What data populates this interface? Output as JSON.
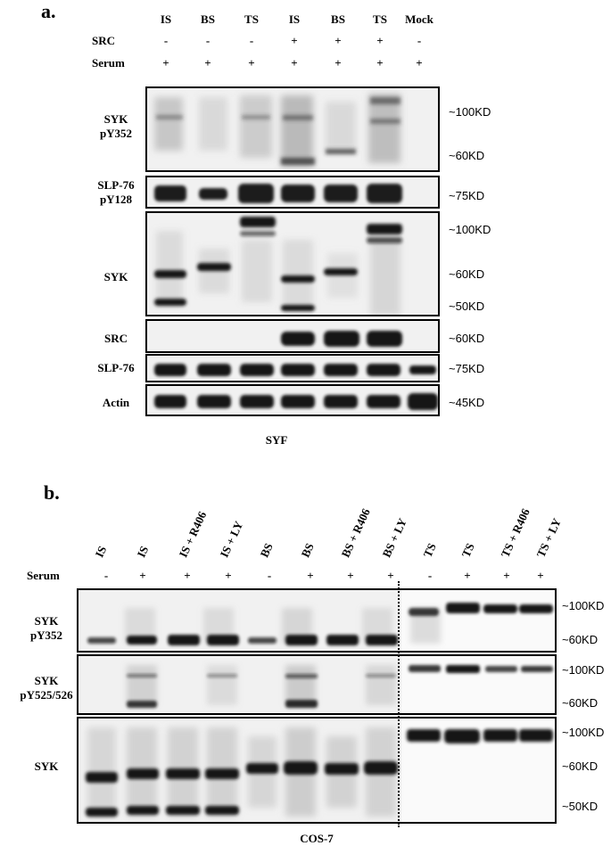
{
  "panel_a": {
    "letter": "a.",
    "lanes": [
      "IS",
      "BS",
      "TS",
      "IS",
      "BS",
      "TS",
      "Mock"
    ],
    "conditions": [
      {
        "label": "SRC",
        "values": [
          "-",
          "-",
          "-",
          "+",
          "+",
          "+",
          "-"
        ]
      },
      {
        "label": "Serum",
        "values": [
          "+",
          "+",
          "+",
          "+",
          "+",
          "+",
          "+"
        ]
      }
    ],
    "blots": [
      {
        "label_lines": [
          "SYK",
          "pY352"
        ],
        "markers": [
          "~100KD",
          "~60KD"
        ]
      },
      {
        "label_lines": [
          "SLP-76",
          "pY128"
        ],
        "markers": [
          "~75KD"
        ]
      },
      {
        "label_lines": [
          "SYK"
        ],
        "markers": [
          "~100KD",
          "~60KD",
          "~50KD"
        ]
      },
      {
        "label_lines": [
          "SRC"
        ],
        "markers": [
          "~60KD"
        ]
      },
      {
        "label_lines": [
          "SLP-76"
        ],
        "markers": [
          "~75KD"
        ]
      },
      {
        "label_lines": [
          "Actin"
        ],
        "markers": [
          "~45KD"
        ]
      }
    ],
    "caption": "SYF"
  },
  "panel_b": {
    "letter": "b.",
    "lanes": [
      "IS",
      "IS",
      "IS + R406",
      "IS + LY",
      "BS",
      "BS",
      "BS + R406",
      "BS + LY",
      "TS",
      "TS",
      "TS + R406",
      "TS + LY"
    ],
    "serum_label": "Serum",
    "serum_values": [
      "-",
      "+",
      "+",
      "+",
      "-",
      "+",
      "+",
      "+",
      "-",
      "+",
      "+",
      "+"
    ],
    "blots": [
      {
        "label_lines": [
          "SYK",
          "pY352"
        ],
        "markers": [
          "~100KD",
          "~60KD"
        ]
      },
      {
        "label_lines": [
          "SYK",
          "pY525/526"
        ],
        "markers": [
          "~100KD",
          "~60KD"
        ]
      },
      {
        "label_lines": [
          "SYK"
        ],
        "markers": [
          "~100KD",
          "~60KD",
          "~50KD"
        ]
      }
    ],
    "caption": "COS-7"
  }
}
